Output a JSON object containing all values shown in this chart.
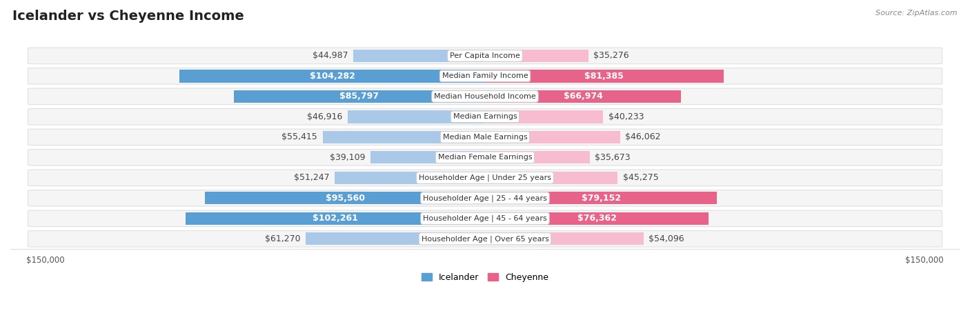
{
  "title": "Icelander vs Cheyenne Income",
  "source": "Source: ZipAtlas.com",
  "categories": [
    "Per Capita Income",
    "Median Family Income",
    "Median Household Income",
    "Median Earnings",
    "Median Male Earnings",
    "Median Female Earnings",
    "Householder Age | Under 25 years",
    "Householder Age | 25 - 44 years",
    "Householder Age | 45 - 64 years",
    "Householder Age | Over 65 years"
  ],
  "icelander": [
    44987,
    104282,
    85797,
    46916,
    55415,
    39109,
    51247,
    95560,
    102261,
    61270
  ],
  "cheyenne": [
    35276,
    81385,
    66974,
    40233,
    46062,
    35673,
    45275,
    79152,
    76362,
    54096
  ],
  "icelander_light": "#aac9e8",
  "icelander_dark": "#5a9fd4",
  "cheyenne_light": "#f7bcd0",
  "cheyenne_dark": "#e8638a",
  "row_bg": "#f5f5f5",
  "row_border": "#e0e0e0",
  "max_value": 150000,
  "bar_height": 0.62,
  "label_fontsize": 9,
  "title_fontsize": 14,
  "source_fontsize": 8,
  "tick_fontsize": 8.5,
  "legend_fontsize": 9,
  "cat_label_fontsize": 8,
  "ice_inside_threshold": 70000,
  "che_inside_threshold": 65000
}
